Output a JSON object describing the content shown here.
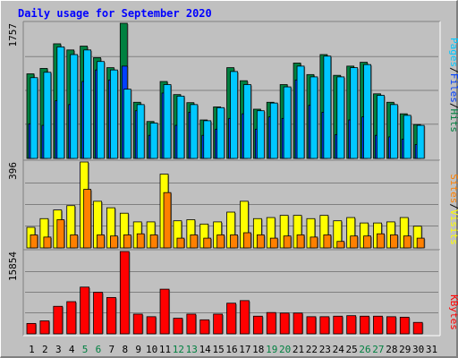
{
  "title": "Daily usage for September 2020",
  "colors": {
    "hits": "#008040",
    "files": "#0040ff",
    "pages": "#00c8ff",
    "visits": "#ffff00",
    "sites": "#ff8000",
    "kbytes": "#ff0000",
    "weekend_label": "#008040",
    "weekday_label": "#000000"
  },
  "legend_top": {
    "hits": "Hits",
    "files": "Files",
    "pages": "Pages",
    "sep1": "/",
    "sep2": "/"
  },
  "legend_mid": {
    "visits": "Visits",
    "sites": "Sites",
    "sep": "/"
  },
  "legend_bot": {
    "kbytes": "KBytes"
  },
  "chart_data": [
    {
      "type": "bar",
      "name": "pages-files-hits",
      "ymax_label": "1757",
      "ylim": [
        0,
        1757
      ],
      "categories": [
        "1",
        "2",
        "3",
        "4",
        "5",
        "6",
        "7",
        "8",
        "9",
        "10",
        "11",
        "12",
        "13",
        "14",
        "15",
        "16",
        "17",
        "18",
        "19",
        "20",
        "21",
        "22",
        "23",
        "24",
        "25",
        "26",
        "27",
        "28",
        "29",
        "30",
        "31"
      ],
      "series": [
        {
          "name": "Hits",
          "values": [
            1100,
            1170,
            1490,
            1410,
            1460,
            1310,
            1180,
            1757,
            730,
            480,
            1000,
            830,
            725,
            500,
            670,
            1180,
            1010,
            640,
            730,
            960,
            1240,
            1090,
            1350,
            1080,
            1200,
            1250,
            840,
            730,
            580,
            440,
            0
          ]
        },
        {
          "name": "Files",
          "values": [
            450,
            430,
            750,
            700,
            1000,
            1150,
            1020,
            1200,
            620,
            300,
            850,
            430,
            600,
            300,
            380,
            520,
            580,
            380,
            540,
            520,
            1020,
            690,
            600,
            310,
            500,
            540,
            300,
            280,
            250,
            180,
            0
          ]
        },
        {
          "name": "Pages",
          "values": [
            1050,
            1120,
            1450,
            1350,
            1410,
            1260,
            1150,
            900,
            700,
            460,
            960,
            810,
            700,
            490,
            660,
            1130,
            960,
            620,
            720,
            930,
            1200,
            1060,
            1330,
            1060,
            1180,
            1220,
            820,
            700,
            560,
            430,
            0
          ]
        }
      ]
    },
    {
      "type": "bar",
      "name": "visits-sites",
      "ymax_label": "396",
      "ylim": [
        0,
        396
      ],
      "categories": [
        "1",
        "2",
        "3",
        "4",
        "5",
        "6",
        "7",
        "8",
        "9",
        "10",
        "11",
        "12",
        "13",
        "14",
        "15",
        "16",
        "17",
        "18",
        "19",
        "20",
        "21",
        "22",
        "23",
        "24",
        "25",
        "26",
        "27",
        "28",
        "29",
        "30",
        "31"
      ],
      "series": [
        {
          "name": "Visits",
          "values": [
            95,
            135,
            175,
            195,
            396,
            215,
            185,
            160,
            120,
            120,
            340,
            125,
            130,
            110,
            120,
            165,
            215,
            135,
            140,
            150,
            150,
            135,
            150,
            125,
            140,
            115,
            115,
            120,
            140,
            100,
            0
          ]
        },
        {
          "name": "Sites",
          "values": [
            60,
            50,
            130,
            60,
            270,
            60,
            55,
            60,
            65,
            60,
            255,
            45,
            60,
            45,
            60,
            60,
            70,
            60,
            45,
            55,
            60,
            50,
            60,
            30,
            55,
            55,
            65,
            60,
            55,
            45,
            0
          ]
        }
      ]
    },
    {
      "type": "bar",
      "name": "kbytes",
      "ymax_label": "15854",
      "ylim": [
        0,
        15854
      ],
      "categories": [
        "1",
        "2",
        "3",
        "4",
        "5",
        "6",
        "7",
        "8",
        "9",
        "10",
        "11",
        "12",
        "13",
        "14",
        "15",
        "16",
        "17",
        "18",
        "19",
        "20",
        "21",
        "22",
        "23",
        "24",
        "25",
        "26",
        "27",
        "28",
        "29",
        "30",
        "31"
      ],
      "series": [
        {
          "name": "KBytes",
          "values": [
            2000,
            2500,
            5300,
            6200,
            9000,
            8000,
            7000,
            15854,
            3800,
            3300,
            8600,
            3000,
            3800,
            2700,
            3800,
            5900,
            6400,
            3400,
            4100,
            4000,
            4000,
            3300,
            3300,
            3400,
            3500,
            3400,
            3400,
            3300,
            3200,
            2200,
            0
          ]
        }
      ]
    }
  ],
  "x_labels": [
    "1",
    "2",
    "3",
    "4",
    "5",
    "6",
    "7",
    "8",
    "9",
    "10",
    "11",
    "12",
    "13",
    "14",
    "15",
    "16",
    "17",
    "18",
    "19",
    "20",
    "21",
    "22",
    "23",
    "24",
    "25",
    "26",
    "27",
    "28",
    "29",
    "30",
    "31"
  ],
  "weekend_days": [
    5,
    6,
    12,
    13,
    19,
    20,
    26,
    27
  ]
}
